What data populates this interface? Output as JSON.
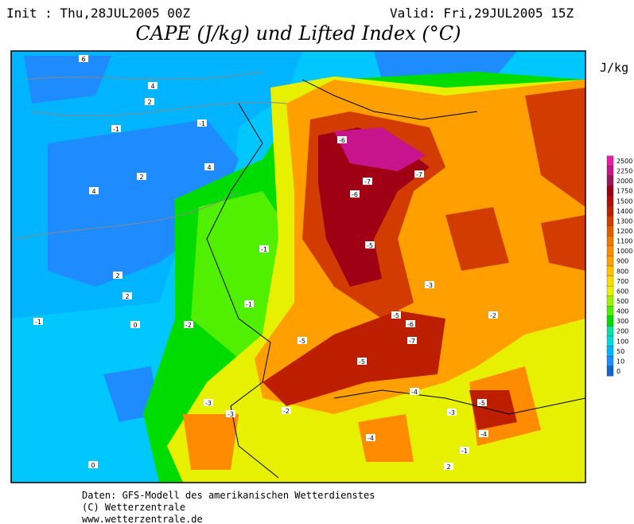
{
  "header": {
    "init": "Init : Thu,28JUL2005 00Z",
    "valid": "Valid: Fri,29JUL2005 15Z",
    "title": "CAPE (J/kg) und Lifted Index (°C)"
  },
  "colorbar": {
    "unit": "J/kg",
    "levels": [
      2500,
      2250,
      2000,
      1750,
      1500,
      1400,
      1300,
      1200,
      1100,
      1000,
      900,
      800,
      700,
      600,
      500,
      400,
      300,
      200,
      100,
      50,
      10,
      0
    ],
    "colors": [
      "#e61ea0",
      "#c8148c",
      "#a0145a",
      "#a00014",
      "#b40a0a",
      "#be1e00",
      "#d23c00",
      "#e65a00",
      "#f07800",
      "#ff8c00",
      "#ffa000",
      "#ffc000",
      "#ffdc00",
      "#e6f000",
      "#a0f000",
      "#50f000",
      "#00dc00",
      "#00e6a0",
      "#00dcdc",
      "#00b4ff",
      "#1e8cff",
      "#1464d2"
    ]
  },
  "contour_labels": [
    "6",
    "4",
    "2",
    "-1",
    "-1",
    "2",
    "4",
    "4",
    "2",
    "2",
    "-1",
    "0",
    "-2",
    "-1",
    "-1",
    "-3",
    "-6",
    "-7",
    "-6",
    "-7",
    "-5",
    "-5",
    "-6",
    "-7",
    "-5",
    "-5",
    "-4",
    "-3",
    "-3",
    "-2",
    "-4",
    "-5",
    "-4",
    "-3",
    "-2",
    "-1",
    "0",
    "2"
  ],
  "footer": [
    "Daten: GFS-Modell des amerikanischen Wetterdienstes",
    "(C) Wetterzentrale",
    "www.wetterzentrale.de"
  ]
}
